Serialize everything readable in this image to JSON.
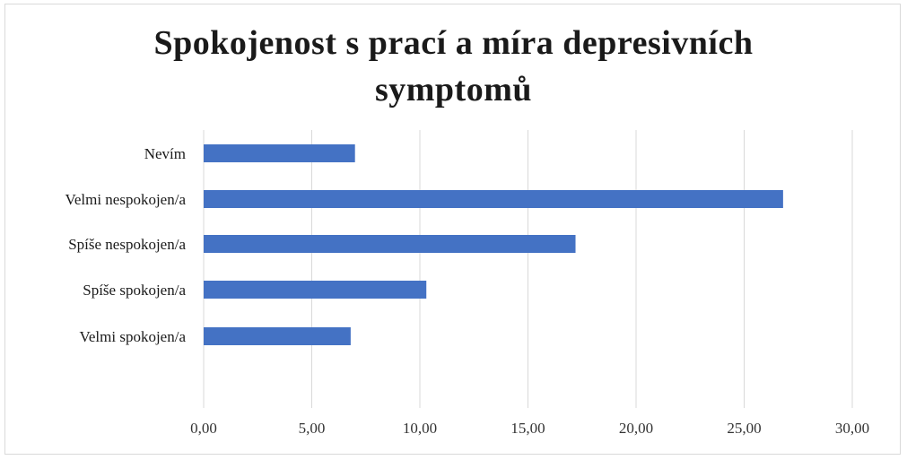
{
  "chart_data": {
    "type": "bar",
    "orientation": "horizontal",
    "title": "Spokojenost s prací a míra depresivních symptomů",
    "categories": [
      "Nevím",
      "Velmi nespokojen/a",
      "Spíše nespokojen/a",
      "Spíše spokojen/a",
      "Velmi spokojen/a"
    ],
    "values": [
      7.0,
      26.8,
      17.2,
      10.3,
      6.8
    ],
    "xlim": [
      0,
      30
    ],
    "xticks": [
      "0,00",
      "5,00",
      "10,00",
      "15,00",
      "20,00",
      "25,00",
      "30,00"
    ],
    "xlabel": "",
    "ylabel": "",
    "grid": "vertical",
    "bar_color": "#4472c4",
    "grid_color": "#d9d9d9"
  }
}
